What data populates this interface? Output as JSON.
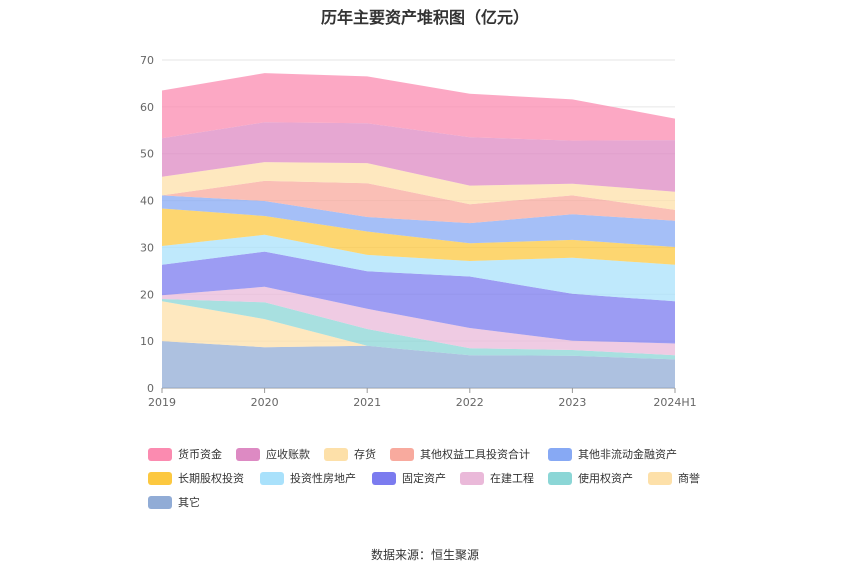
{
  "chart_data": {
    "type": "area",
    "stacked": true,
    "title": "历年主要资产堆积图（亿元）",
    "categories": [
      "2019",
      "2020",
      "2021",
      "2022",
      "2023",
      "2024H1"
    ],
    "ylim": [
      0,
      70
    ],
    "yticks": [
      0,
      10,
      20,
      30,
      40,
      50,
      60,
      70
    ],
    "grid": true,
    "legend_position": "bottom",
    "series": [
      {
        "name": "其它",
        "color": "#91acd6",
        "values": [
          10.0,
          8.7,
          9.0,
          7.0,
          6.9,
          6.1
        ]
      },
      {
        "name": "商誉",
        "color": "#fde0a9",
        "values": [
          8.5,
          6.0,
          0.0,
          0.0,
          0.0,
          0.0
        ]
      },
      {
        "name": "使用权资产",
        "color": "#8bd6d6",
        "values": [
          0.5,
          3.6,
          3.6,
          1.5,
          1.2,
          0.9
        ]
      },
      {
        "name": "在建工程",
        "color": "#eab9d9",
        "values": [
          0.8,
          3.3,
          4.3,
          4.3,
          2.0,
          2.5
        ]
      },
      {
        "name": "固定资产",
        "color": "#7b7bef",
        "values": [
          6.5,
          7.5,
          8.0,
          11.0,
          10.0,
          9.0
        ]
      },
      {
        "name": "投资性房地产",
        "color": "#a9e1fb",
        "values": [
          4.0,
          3.6,
          3.5,
          3.3,
          7.7,
          7.8
        ]
      },
      {
        "name": "长期股权投资",
        "color": "#fcc840",
        "values": [
          8.0,
          4.0,
          5.0,
          3.8,
          3.8,
          3.8
        ]
      },
      {
        "name": "其他非流动金融资产",
        "color": "#87a9f4",
        "values": [
          2.8,
          3.2,
          3.1,
          4.3,
          5.5,
          5.6
        ]
      },
      {
        "name": "其他权益工具投资合计",
        "color": "#f8aa9e",
        "values": [
          0.0,
          4.3,
          7.2,
          4.0,
          4.0,
          2.3
        ]
      },
      {
        "name": "存货",
        "color": "#fde0a9",
        "values": [
          4.0,
          4.0,
          4.3,
          4.0,
          2.5,
          3.9
        ]
      },
      {
        "name": "应收账款",
        "color": "#dd8ac3",
        "values": [
          8.2,
          8.5,
          8.5,
          10.3,
          9.2,
          11.0
        ]
      },
      {
        "name": "货币资金",
        "color": "#fb8bb0",
        "values": [
          10.2,
          10.5,
          10.0,
          9.3,
          8.8,
          4.6
        ]
      }
    ],
    "legend_order": [
      "货币资金",
      "应收账款",
      "存货",
      "其他权益工具投资合计",
      "其他非流动金融资产",
      "长期股权投资",
      "投资性房地产",
      "固定资产",
      "在建工程",
      "使用权资产",
      "商誉",
      "其它"
    ]
  },
  "source": "数据来源：恒生聚源"
}
